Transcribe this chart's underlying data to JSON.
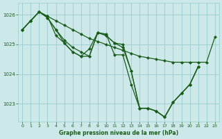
{
  "title": "Graphe pression niveau de la mer (hPa)",
  "bg_color": "#cce8e8",
  "grid_color": "#99cccc",
  "line_color": "#1a5c1a",
  "marker_color": "#1a5c1a",
  "xlim": [
    -0.5,
    23.5
  ],
  "ylim": [
    1022.4,
    1026.4
  ],
  "yticks": [
    1023,
    1024,
    1025,
    1026
  ],
  "xticks": [
    0,
    1,
    2,
    3,
    4,
    5,
    6,
    7,
    8,
    9,
    10,
    11,
    12,
    13,
    14,
    15,
    16,
    17,
    18,
    19,
    20,
    21,
    22,
    23
  ],
  "series": [
    [
      1025.5,
      1025.8,
      1026.1,
      1025.95,
      1025.8,
      1025.65,
      1025.5,
      1025.35,
      1025.2,
      1025.1,
      1025.0,
      1024.9,
      1024.8,
      1024.7,
      1024.6,
      1024.55,
      1024.5,
      1024.45,
      1024.4,
      1024.4,
      1024.4,
      1024.4,
      1024.4,
      1025.25
    ],
    [
      1025.5,
      1025.8,
      1026.1,
      1025.9,
      1025.5,
      1025.15,
      1024.9,
      1024.75,
      1024.6,
      1025.4,
      1025.3,
      1025.05,
      1025.0,
      1024.1,
      1022.85,
      1022.85,
      1022.75,
      1022.55,
      1023.05,
      1023.35,
      1023.65,
      1024.25,
      null,
      null
    ],
    [
      1025.5,
      1025.8,
      1026.1,
      1025.9,
      1025.5,
      1025.05,
      1024.75,
      1024.6,
      1024.6,
      1025.4,
      1025.3,
      1025.05,
      1024.9,
      1024.1,
      1022.85,
      1022.85,
      1022.75,
      1022.55,
      1023.05,
      1023.35,
      1023.65,
      1024.25,
      null,
      null
    ],
    [
      1025.5,
      1025.8,
      1026.1,
      1025.95,
      1025.3,
      1025.05,
      1024.75,
      1024.6,
      1024.85,
      1025.4,
      1025.35,
      1024.65,
      1024.65,
      1023.65,
      1022.85,
      1022.85,
      1022.75,
      1022.55,
      1023.05,
      1023.35,
      1023.65,
      1024.25,
      null,
      null
    ]
  ]
}
